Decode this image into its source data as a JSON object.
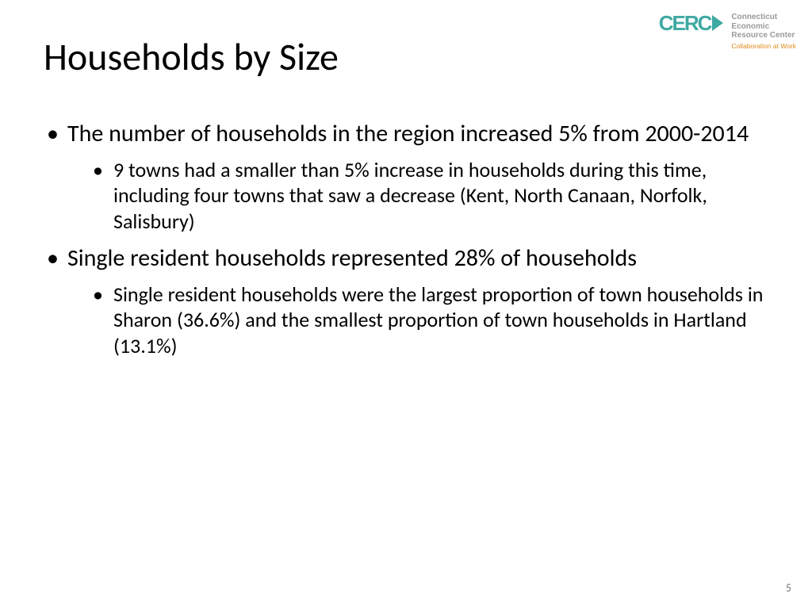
{
  "logo": {
    "mark_text": "CERC",
    "org_line1": "Connecticut",
    "org_line2": "Economic",
    "org_line3": "Resource Center",
    "tagline": "Collaboration at Work",
    "mark_color": "#3fa9a3",
    "org_color": "#9a9a9a",
    "tagline_color": "#e08a1e"
  },
  "title": "Households by Size",
  "bullets": [
    {
      "text": "The number of households in the region increased 5% from 2000-2014",
      "sub": [
        "9 towns had a smaller than 5% increase in households during this time, including four towns that saw a decrease (Kent, North Canaan, Norfolk, Salisbury)"
      ]
    },
    {
      "text": "Single resident households represented 28% of households",
      "sub": [
        "Single resident households were the largest proportion of town households in Sharon (36.6%) and the smallest proportion of town households in Hartland (13.1%)"
      ]
    }
  ],
  "page_number": "5",
  "styling": {
    "background_color": "#ffffff",
    "title_fontsize": 48,
    "title_color": "#000000",
    "bullet_fontsize": 30,
    "subbullet_fontsize": 26,
    "text_color": "#000000",
    "pagenum_color": "#7a7a7a",
    "pagenum_fontsize": 14,
    "font_family": "Calibri"
  }
}
